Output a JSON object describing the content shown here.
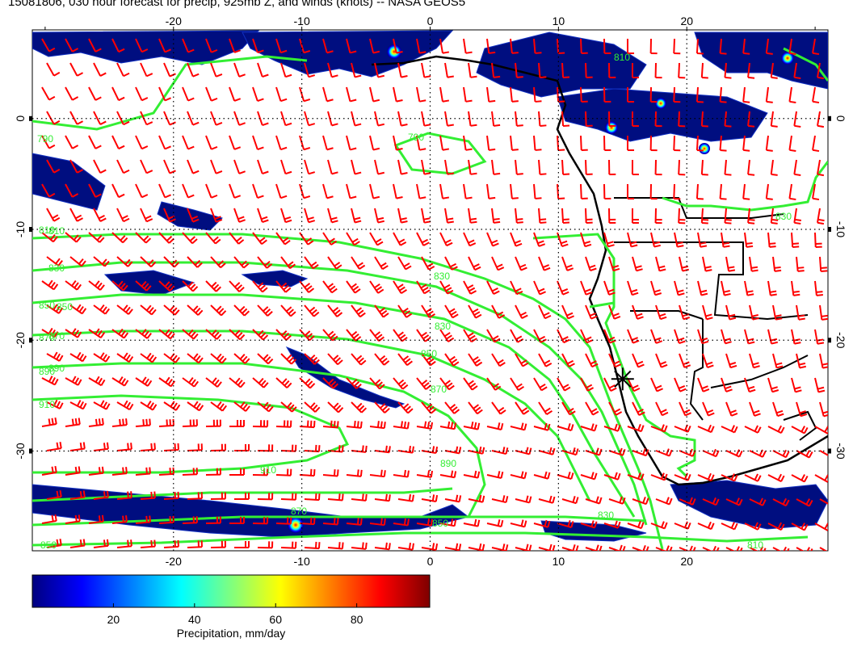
{
  "title": "15081806, 030 hour forecast for precip, 925mb Z, and winds (knots) -- NASA GEOS5",
  "map": {
    "lon_range": [
      -31,
      31
    ],
    "lat_range": [
      -39,
      8
    ],
    "lon_ticks": [
      "-20",
      "-10",
      "0",
      "10",
      "20"
    ],
    "lat_ticks": [
      "0",
      "-10",
      "-20",
      "-30"
    ],
    "marker": {
      "lon": 15,
      "lat": -23.5,
      "symbol": "star"
    }
  },
  "contours": {
    "color": "#33ee33",
    "labels": [
      "790",
      "790",
      "810",
      "830",
      "850",
      "870",
      "890",
      "910",
      "910",
      "890",
      "870",
      "850",
      "830",
      "810",
      "830",
      "850",
      "870",
      "890",
      "850",
      "830",
      "810",
      "870",
      "850",
      "830",
      "810"
    ]
  },
  "wind_barbs": {
    "color": "#ff0000",
    "units": "knots"
  },
  "colorbar": {
    "title": "Precipitation, mm/day",
    "ticks": [
      "20",
      "40",
      "60",
      "80"
    ],
    "tick_values": [
      20,
      40,
      60,
      80
    ],
    "range": [
      0,
      98
    ],
    "colors": [
      "#00007f",
      "#0000ff",
      "#007fff",
      "#00ffff",
      "#7fff7f",
      "#ffff00",
      "#ff7f00",
      "#ff0000",
      "#7f0000"
    ]
  }
}
